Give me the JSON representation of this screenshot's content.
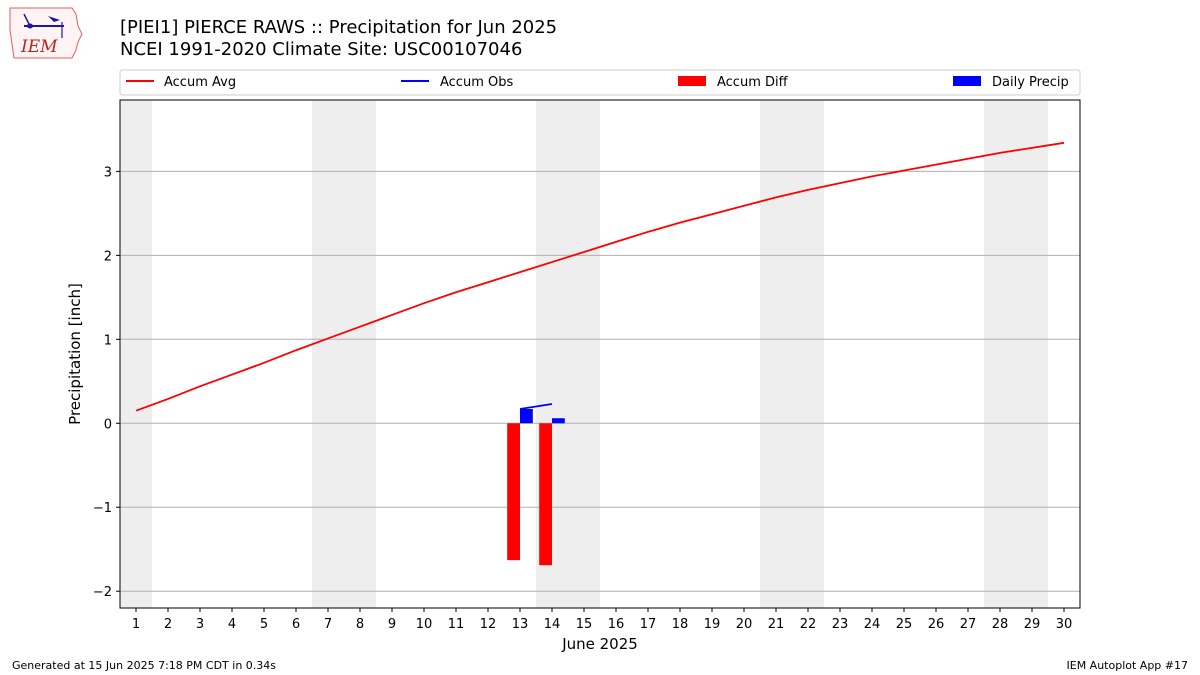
{
  "header": {
    "title_line1": "[PIEI1] PIERCE RAWS :: Precipitation for Jun 2025",
    "title_line2": "NCEI 1991-2020 Climate Site: USC00107046"
  },
  "logo": {
    "text": "IEM"
  },
  "footer": {
    "generated": "Generated at 15 Jun 2025 7:18 PM CDT in 0.34s",
    "app": "IEM Autoplot App #17"
  },
  "colors": {
    "accum_avg": "#ff0000",
    "accum_obs": "#0000ff",
    "accum_diff": "#ff0000",
    "daily_precip": "#0000ff",
    "weekend_shade": "#eeeeee",
    "grid": "#b0b0b0"
  },
  "chart_data": {
    "type": "line",
    "xlabel": "June 2025",
    "ylabel": "Precipitation [inch]",
    "days": [
      1,
      2,
      3,
      4,
      5,
      6,
      7,
      8,
      9,
      10,
      11,
      12,
      13,
      14,
      15,
      16,
      17,
      18,
      19,
      20,
      21,
      22,
      23,
      24,
      25,
      26,
      27,
      28,
      29,
      30
    ],
    "xlim": [
      0.5,
      30.5
    ],
    "ylim": [
      -2.2,
      3.85
    ],
    "yticks": [
      -2,
      -1,
      0,
      1,
      2,
      3
    ],
    "grid": "horizontal",
    "legend": "top, above plot",
    "weekend_days": [
      1,
      7,
      8,
      14,
      15,
      21,
      22,
      28,
      29
    ],
    "series": [
      {
        "name": "Accum Avg",
        "kind": "line",
        "x": [
          1,
          2,
          3,
          4,
          5,
          6,
          7,
          8,
          9,
          10,
          11,
          12,
          13,
          14,
          15,
          16,
          17,
          18,
          19,
          20,
          21,
          22,
          23,
          24,
          25,
          26,
          27,
          28,
          29,
          30
        ],
        "values": [
          0.15,
          0.29,
          0.44,
          0.58,
          0.72,
          0.87,
          1.01,
          1.15,
          1.29,
          1.43,
          1.56,
          1.68,
          1.8,
          1.92,
          2.04,
          2.16,
          2.28,
          2.39,
          2.49,
          2.59,
          2.69,
          2.78,
          2.86,
          2.94,
          3.01,
          3.08,
          3.15,
          3.22,
          3.28,
          3.34
        ]
      },
      {
        "name": "Accum Obs",
        "kind": "line",
        "x": [
          13,
          14
        ],
        "values": [
          0.17,
          0.23
        ]
      },
      {
        "name": "Accum Diff",
        "kind": "bar",
        "x": [
          13,
          14
        ],
        "values": [
          -1.63,
          -1.69
        ]
      },
      {
        "name": "Daily Precip",
        "kind": "bar",
        "x": [
          13,
          14
        ],
        "values": [
          0.17,
          0.06
        ]
      }
    ]
  }
}
